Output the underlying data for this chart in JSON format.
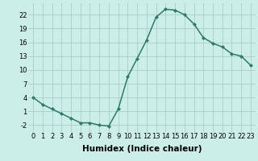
{
  "x": [
    0,
    1,
    2,
    3,
    4,
    5,
    6,
    7,
    8,
    9,
    10,
    11,
    12,
    13,
    14,
    15,
    16,
    17,
    18,
    19,
    20,
    21,
    22,
    23
  ],
  "y": [
    4,
    2.5,
    1.5,
    0.5,
    -0.5,
    -1.5,
    -1.5,
    -2,
    -2.2,
    1.5,
    8.5,
    12.5,
    16.5,
    21.5,
    23.2,
    23.0,
    22.0,
    20.0,
    17.0,
    15.8,
    15.0,
    13.5,
    13.0,
    11.0
  ],
  "line_color": "#2d7a6a",
  "marker": "D",
  "markersize": 2.0,
  "linewidth": 1.1,
  "xlabel": "Humidex (Indice chaleur)",
  "yticks": [
    -2,
    1,
    4,
    7,
    10,
    13,
    16,
    19,
    22
  ],
  "xticks": [
    0,
    1,
    2,
    3,
    4,
    5,
    6,
    7,
    8,
    9,
    10,
    11,
    12,
    13,
    14,
    15,
    16,
    17,
    18,
    19,
    20,
    21,
    22,
    23
  ],
  "xlim": [
    -0.5,
    23.5
  ],
  "ylim": [
    -3.5,
    24.5
  ],
  "bg_color": "#cceee8",
  "grid_color": "#aacccc",
  "xlabel_fontsize": 7.5,
  "tick_fontsize": 6.0
}
